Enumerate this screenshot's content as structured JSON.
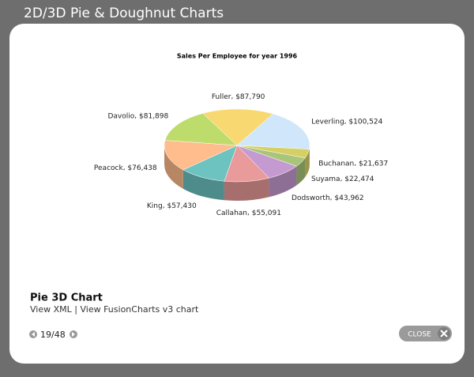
{
  "page": {
    "title": "2D/3D Pie & Doughnut Charts",
    "caption_title": "Pie 3D Chart",
    "link_xml": "View XML",
    "separator": "|",
    "link_v3": "View FusionCharts v3 chart",
    "counter": "19/48",
    "close": "CLOSE"
  },
  "chart_data": {
    "type": "pie3d",
    "title": "Sales Per Employee for year 1996",
    "categories": [
      "Fuller",
      "Leverling",
      "Buchanan",
      "Suyama",
      "Dodsworth",
      "Callahan",
      "King",
      "Peacock",
      "Davolio"
    ],
    "values": [
      87790,
      100524,
      21637,
      22474,
      43962,
      55091,
      57430,
      76438,
      81898
    ],
    "value_labels": [
      "$87,790",
      "$100,524",
      "$21,637",
      "$22,474",
      "$43,962",
      "$55,091",
      "$57,430",
      "$76,438",
      "$81,898"
    ],
    "colors": [
      "#f8d870",
      "#cfe6fb",
      "#d6cf63",
      "#a9c57a",
      "#c59ad0",
      "#e99a9a",
      "#6cc3c0",
      "#ffbc8c",
      "#bedc6c"
    ]
  }
}
